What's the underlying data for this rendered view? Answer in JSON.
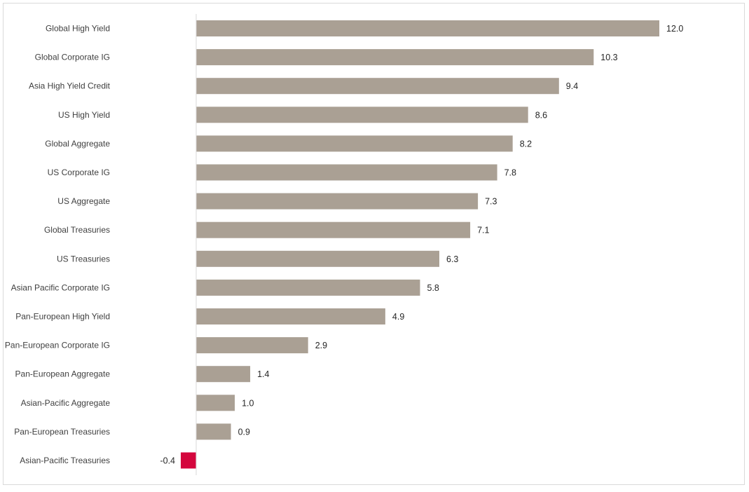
{
  "colors": {
    "positive": "#aaa094",
    "negative": "#d4063d",
    "axis": "#d9d9d9",
    "frame": "#d9d9d9"
  },
  "chart_data": {
    "type": "bar",
    "orientation": "horizontal",
    "categories": [
      "Global High Yield",
      "Global Corporate IG",
      "Asia High Yield Credit",
      "US High Yield",
      "Global Aggregate",
      "US Corporate IG",
      "US Aggregate",
      "Global Treasuries",
      "US Treasuries",
      "Asian Pacific Corporate IG",
      "Pan-European High Yield",
      "Pan-European Corporate IG",
      "Pan-European Aggregate",
      "Asian-Pacific Aggregate",
      "Pan-European Treasuries",
      "Asian-Pacific Treasuries"
    ],
    "values": [
      12.0,
      10.3,
      9.4,
      8.6,
      8.2,
      7.8,
      7.3,
      7.1,
      6.3,
      5.8,
      4.9,
      2.9,
      1.4,
      1.0,
      0.9,
      -0.4
    ],
    "value_labels": [
      "12.0",
      "10.3",
      "9.4",
      "8.6",
      "8.2",
      "7.8",
      "7.3",
      "7.1",
      "6.3",
      "5.8",
      "4.9",
      "2.9",
      "1.4",
      "1.0",
      "0.9",
      "-0.4"
    ],
    "title": "",
    "xlabel": "",
    "ylabel": "",
    "xlim": [
      -0.4,
      12.0
    ],
    "grid": false,
    "legend": "none"
  }
}
